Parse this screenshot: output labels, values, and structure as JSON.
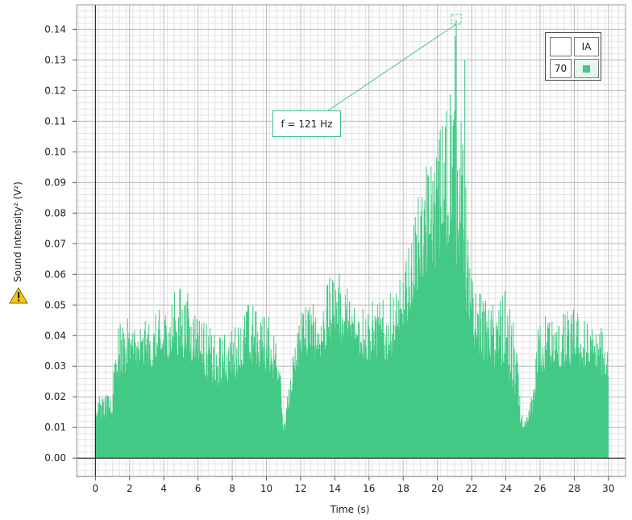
{
  "chart_data": {
    "type": "area",
    "title": "",
    "xlabel": "Time (s)",
    "ylabel": "Sound Intensity² (V²)",
    "xlim": [
      -1.1,
      31.0
    ],
    "ylim": [
      -0.006,
      0.148
    ],
    "x_ticks": [
      "0",
      "2",
      "4",
      "6",
      "8",
      "10",
      "12",
      "14",
      "16",
      "18",
      "20",
      "22",
      "24",
      "26",
      "28",
      "30"
    ],
    "y_ticks": [
      "0.00",
      "0.01",
      "0.02",
      "0.03",
      "0.04",
      "0.05",
      "0.06",
      "0.07",
      "0.08",
      "0.09",
      "0.10",
      "0.11",
      "0.12",
      "0.13",
      "0.14"
    ],
    "grid": true,
    "series": [
      {
        "color": "#43c986",
        "envelope_time_s": [
          0,
          0.5,
          1.0,
          1.1,
          2,
          3,
          4,
          5,
          6,
          7,
          8,
          9,
          10,
          10.8,
          11.0,
          12,
          13,
          14,
          15,
          16,
          17,
          18,
          18.5,
          19,
          20,
          21,
          21.5,
          22,
          23,
          24,
          24.5,
          25,
          25.5,
          26,
          27,
          28,
          29,
          30
        ],
        "envelope_peak": [
          0.02,
          0.021,
          0.02,
          0.043,
          0.046,
          0.045,
          0.05,
          0.058,
          0.05,
          0.04,
          0.043,
          0.052,
          0.048,
          0.041,
          0.01,
          0.055,
          0.05,
          0.063,
          0.055,
          0.052,
          0.052,
          0.06,
          0.075,
          0.09,
          0.105,
          0.143,
          0.105,
          0.06,
          0.05,
          0.055,
          0.045,
          0.01,
          0.02,
          0.05,
          0.047,
          0.05,
          0.044,
          0.042
        ],
        "envelope_mean": [
          0.012,
          0.013,
          0.013,
          0.025,
          0.029,
          0.028,
          0.031,
          0.033,
          0.03,
          0.022,
          0.025,
          0.03,
          0.027,
          0.024,
          0.006,
          0.033,
          0.032,
          0.038,
          0.034,
          0.031,
          0.031,
          0.038,
          0.05,
          0.057,
          0.062,
          0.066,
          0.055,
          0.035,
          0.03,
          0.028,
          0.018,
          0.008,
          0.012,
          0.028,
          0.027,
          0.03,
          0.027,
          0.025
        ],
        "envelope_floor": [
          0.004,
          0.004,
          0.004,
          0.009,
          0.01,
          0.01,
          0.012,
          0.013,
          0.011,
          0.008,
          0.009,
          0.011,
          0.01,
          0.008,
          0.002,
          0.012,
          0.012,
          0.014,
          0.012,
          0.011,
          0.011,
          0.014,
          0.02,
          0.023,
          0.025,
          0.027,
          0.022,
          0.013,
          0.011,
          0.01,
          0.006,
          0.003,
          0.004,
          0.01,
          0.01,
          0.011,
          0.01,
          0.009
        ],
        "peak_annotation": {
          "x": 21.1,
          "y": 0.143,
          "label": "f = 121 Hz"
        }
      }
    ],
    "legend": {
      "position": "top-right",
      "header": "IA",
      "row_label": "70",
      "swatch_color": "#43c986"
    }
  }
}
